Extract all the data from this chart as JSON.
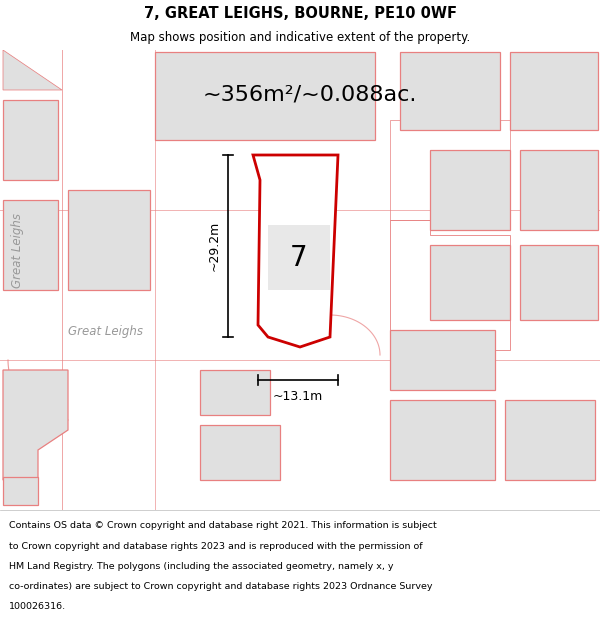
{
  "title": "7, GREAT LEIGHS, BOURNE, PE10 0WF",
  "subtitle": "Map shows position and indicative extent of the property.",
  "area_text": "~356m²/~0.088ac.",
  "label_number": "7",
  "dim_height": "~29.2m",
  "dim_width": "~13.1m",
  "bg_map_color": "#eeeeee",
  "plot_fill": "#ffffff",
  "plot_stroke": "#cc0000",
  "neighbor_stroke": "#e88080",
  "neighbor_fill": "#e0e0e0",
  "footer_text_lines": [
    "Contains OS data © Crown copyright and database right 2021. This information is subject",
    "to Crown copyright and database rights 2023 and is reproduced with the permission of",
    "HM Land Registry. The polygons (including the associated geometry, namely x, y",
    "co-ordinates) are subject to Crown copyright and database rights 2023 Ordnance Survey",
    "100026316."
  ],
  "street_label_vert": "Great Leighs",
  "street_label_horiz": "Great Leighs",
  "header_bg": "#ffffff",
  "footer_bg": "#ffffff"
}
